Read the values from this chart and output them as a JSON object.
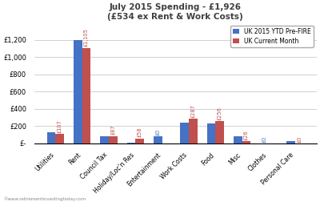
{
  "title_line1": "July 2015 Spending - £1,926",
  "title_line2": "(£534 ex Rent & Work Costs)",
  "categories": [
    "Utilities",
    "Rent",
    "Council Tax",
    "Holiday/Loc'n Res",
    "Entertainment",
    "Work Costs",
    "Food",
    "Misc",
    "Clothes",
    "Personal Care"
  ],
  "series1_label": "UK 2015 YTD Pre-FIRE",
  "series2_label": "UK Current Month",
  "series1_color": "#4472C4",
  "series2_color": "#C0504D",
  "series1_values": [
    130,
    1200,
    87,
    10,
    80,
    240,
    230,
    80,
    0,
    30
  ],
  "series2_values": [
    107,
    1105,
    87,
    58,
    0,
    287,
    256,
    26,
    0,
    0
  ],
  "ann2": [
    "£107",
    "£1,105",
    "£87",
    "£58",
    "",
    "£287",
    "£256",
    "£26",
    "",
    "£0"
  ],
  "ann1": [
    "",
    "",
    "",
    "",
    "£0",
    "",
    "",
    "",
    "£0",
    ""
  ],
  "ylim": [
    0,
    1400
  ],
  "yticks": [
    0,
    200,
    400,
    600,
    800,
    1000,
    1200
  ],
  "ytick_labels": [
    "£-",
    "£200",
    "£400",
    "£600",
    "£800",
    "£1,000",
    "£1,200"
  ],
  "watermark": "©www.retirementinvestingtoday.com",
  "bg": "#FFFFFF",
  "grid_color": "#BFBFBF",
  "title_color": "#3F3F3F",
  "ann_color1": "#4472C4",
  "ann_color2": "#C0504D",
  "bar_width": 0.32,
  "title_fontsize": 7.5,
  "tick_fontsize": 6.0,
  "xtick_fontsize": 5.5,
  "ann_fontsize": 4.8,
  "legend_fontsize": 5.5
}
